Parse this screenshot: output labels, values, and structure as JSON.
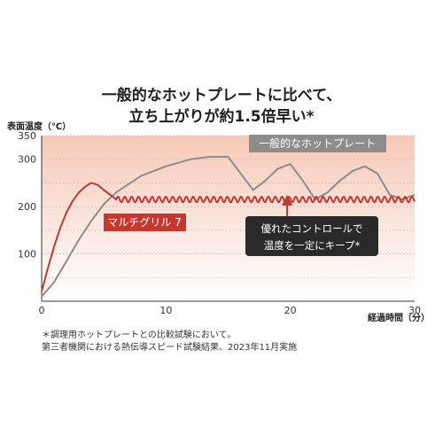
{
  "title_lines": [
    "一般的なホットプレートに比べて、",
    "立ち上がりが約1.5倍早い*"
  ],
  "footnotes": [
    "＊調理用ホットプレートとの比較試験において。",
    "第三者機関における熱伝導スピード試験結果、2023年11月実施"
  ],
  "colors": {
    "red": "#c8372d",
    "gray": "#8c8c8c",
    "dark_box": "#2a2a2a",
    "background_band_top": "#f6c9b8",
    "background_band_bottom": "#ffffff"
  },
  "chart_data": {
    "type": "line",
    "xlabel": "経過時間（分）",
    "ylabel": "表面温度（℃）",
    "xlim": [
      0,
      30
    ],
    "ylim": [
      0,
      350
    ],
    "x_ticks": [
      "0",
      "10",
      "20",
      "30"
    ],
    "y_ticks": [
      "100",
      "200",
      "300",
      "350"
    ],
    "grid": true,
    "series": [
      {
        "name": "一般的なホットプレート",
        "color": "#8c8c8c",
        "x": [
          0,
          1,
          2,
          3,
          4,
          5,
          6,
          8,
          10,
          12,
          13.5,
          15,
          16,
          17,
          18,
          19,
          20,
          21,
          22,
          23,
          24,
          25,
          26,
          27,
          28,
          29,
          30
        ],
        "y": [
          10,
          40,
          85,
          130,
          170,
          205,
          230,
          265,
          285,
          300,
          305,
          305,
          270,
          235,
          255,
          280,
          290,
          255,
          215,
          230,
          255,
          275,
          285,
          270,
          225,
          215,
          225
        ]
      },
      {
        "name": "マルチグリル 7",
        "color": "#c8372d",
        "x": [
          0,
          0.5,
          1,
          1.5,
          2,
          2.5,
          3,
          3.5,
          4,
          4.5,
          5,
          5.5,
          6
        ],
        "y": [
          20,
          70,
          115,
          155,
          188,
          212,
          230,
          242,
          250,
          246,
          235,
          225,
          215
        ],
        "oscillation": {
          "from": 6,
          "to": 30,
          "center": 215,
          "amplitude": 6,
          "period": 0.55
        }
      }
    ],
    "annotations": {
      "gray_label": "一般的なホットプレート",
      "red_label": "マルチグリル 7",
      "control_box": [
        "優れたコントロールで",
        "温度を一定にキープ*"
      ]
    }
  }
}
